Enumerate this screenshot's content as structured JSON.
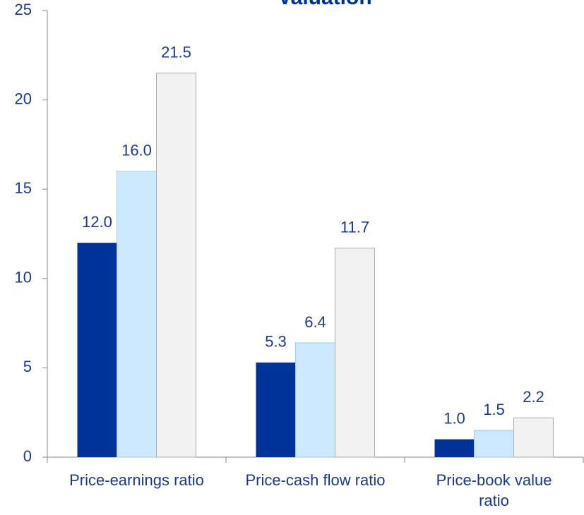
{
  "chart_data": {
    "type": "bar",
    "title": "Valuation",
    "categories": [
      "Price-earnings ratio",
      "Price-cash flow ratio",
      "Price-book value ratio"
    ],
    "series": [
      {
        "color": "#003399",
        "values": [
          12.0,
          5.3,
          1.0
        ],
        "value_labels": [
          "12.0",
          "5.3",
          "1.0"
        ]
      },
      {
        "color": "#cce9ff",
        "values": [
          16.0,
          6.4,
          1.5
        ],
        "value_labels": [
          "16.0",
          "6.4",
          "1.5"
        ]
      },
      {
        "color": "#f2f2f2",
        "values": [
          21.5,
          11.7,
          2.2
        ],
        "value_labels": [
          "21.5",
          "11.7",
          "2.2"
        ]
      }
    ],
    "ylim": [
      0,
      25
    ],
    "yticks": [
      0,
      5,
      10,
      15,
      20,
      25
    ],
    "grid": false
  }
}
